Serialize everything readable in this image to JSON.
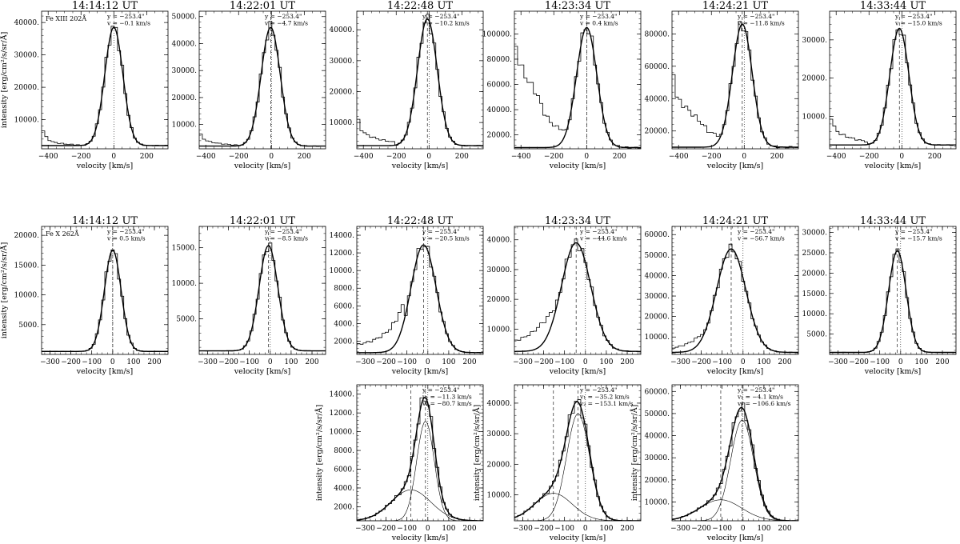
{
  "figure": {
    "xlabel": "velocity [km/s]",
    "ylabel_html": "intensity [erg/cm²/s/sr/Å]"
  },
  "chart_data": [
    {
      "row": 0,
      "col": 0,
      "type": "line",
      "title": "14:14:12 UT",
      "line_label": "Fe XIII 202Å",
      "ann": [
        "y = −253.4\"",
        "v = −0.1 km/s"
      ],
      "xlim": [
        -440,
        330
      ],
      "ylim": [
        1000,
        43500
      ],
      "xticks": [
        -400,
        -200,
        0,
        200
      ],
      "yticks": [
        10000,
        20000,
        30000,
        40000
      ],
      "ytick_labels": [
        "10000.",
        "20000.",
        "30000.",
        "40000."
      ],
      "vlines": [
        0
      ],
      "fit": {
        "bg": 2000,
        "components": [
          {
            "amp": 36500,
            "center": -0.1,
            "sigma": 55
          }
        ]
      },
      "left_excess": [
        {
          "x": -440,
          "y": 7500
        },
        {
          "x": -410,
          "y": 4500
        },
        {
          "x": -380,
          "y": 3200
        },
        {
          "x": -340,
          "y": 2800
        },
        {
          "x": -300,
          "y": 2500
        },
        {
          "x": -250,
          "y": 2300
        },
        {
          "x": -200,
          "y": 2200
        }
      ]
    },
    {
      "row": 0,
      "col": 1,
      "type": "line",
      "title": "14:22:01 UT",
      "ann": [
        "y = −253.4\"",
        "v = −4.7 km/s"
      ],
      "xlim": [
        -440,
        330
      ],
      "ylim": [
        1000,
        52000
      ],
      "xticks": [
        -400,
        -200,
        0,
        200
      ],
      "yticks": [
        10000,
        20000,
        30000,
        40000,
        50000
      ],
      "ytick_labels": [
        "10000.",
        "20000.",
        "30000.",
        "40000.",
        "50000."
      ],
      "vlines": [
        -4.7,
        0
      ],
      "fit": {
        "bg": 2000,
        "components": [
          {
            "amp": 44000,
            "center": -4.7,
            "sigma": 58
          }
        ]
      },
      "left_excess": [
        {
          "x": -440,
          "y": 7000
        },
        {
          "x": -410,
          "y": 4500
        },
        {
          "x": -370,
          "y": 3500
        },
        {
          "x": -320,
          "y": 3000
        },
        {
          "x": -260,
          "y": 2600
        },
        {
          "x": -200,
          "y": 2300
        }
      ]
    },
    {
      "row": 0,
      "col": 2,
      "type": "line",
      "title": "14:22:48 UT",
      "ann": [
        "y = −253.4\"",
        "v = −10.2 km/s"
      ],
      "xlim": [
        -440,
        330
      ],
      "ylim": [
        1500,
        46000
      ],
      "xticks": [
        -400,
        -200,
        0,
        200
      ],
      "yticks": [
        10000,
        20000,
        30000,
        40000
      ],
      "ytick_labels": [
        "10000.",
        "20000.",
        "30000.",
        "40000."
      ],
      "vlines": [
        -10.2,
        0
      ],
      "fit": {
        "bg": 2500,
        "components": [
          {
            "amp": 41000,
            "center": -10.2,
            "sigma": 60
          }
        ]
      },
      "left_excess": [
        {
          "x": -440,
          "y": 12000
        },
        {
          "x": -410,
          "y": 7500
        },
        {
          "x": -380,
          "y": 6000
        },
        {
          "x": -340,
          "y": 5200
        },
        {
          "x": -300,
          "y": 4500
        },
        {
          "x": -250,
          "y": 4000
        },
        {
          "x": -200,
          "y": 3500
        }
      ]
    },
    {
      "row": 0,
      "col": 3,
      "type": "line",
      "title": "14:23:34 UT",
      "ann": [
        "y = −253.4\"",
        "v = 0.4 km/s"
      ],
      "xlim": [
        -440,
        330
      ],
      "ylim": [
        9000,
        118000
      ],
      "xticks": [
        -400,
        -200,
        0,
        200
      ],
      "yticks": [
        20000,
        40000,
        60000,
        80000,
        100000
      ],
      "ytick_labels": [
        "20000.",
        "40000.",
        "60000.",
        "80000.",
        "100000."
      ],
      "vlines": [
        0.4,
        0
      ],
      "fit": {
        "bg": 10000,
        "components": [
          {
            "amp": 95000,
            "center": 0.4,
            "sigma": 62
          }
        ]
      },
      "left_excess": [
        {
          "x": -440,
          "y": 95000
        },
        {
          "x": -410,
          "y": 78000
        },
        {
          "x": -380,
          "y": 68000
        },
        {
          "x": -340,
          "y": 60000
        },
        {
          "x": -300,
          "y": 52000
        },
        {
          "x": -260,
          "y": 38000
        },
        {
          "x": -220,
          "y": 30000
        },
        {
          "x": -180,
          "y": 26000
        },
        {
          "x": -140,
          "y": 24000
        }
      ]
    },
    {
      "row": 0,
      "col": 4,
      "type": "line",
      "title": "14:24:21 UT",
      "ann": [
        "y = −253.4\"",
        "v = −11.8 km/s"
      ],
      "xlim": [
        -440,
        330
      ],
      "ylim": [
        9000,
        94000
      ],
      "xticks": [
        -400,
        -200,
        0,
        200
      ],
      "yticks": [
        20000,
        40000,
        60000,
        80000
      ],
      "ytick_labels": [
        "20000.",
        "40000.",
        "60000.",
        "80000."
      ],
      "vlines": [
        -11.8,
        0
      ],
      "fit": {
        "bg": 10000,
        "components": [
          {
            "amp": 76000,
            "center": -11.8,
            "sigma": 60
          }
        ]
      },
      "left_excess": [
        {
          "x": -440,
          "y": 65000
        },
        {
          "x": -410,
          "y": 40000
        },
        {
          "x": -380,
          "y": 37000
        },
        {
          "x": -340,
          "y": 33000
        },
        {
          "x": -300,
          "y": 29000
        },
        {
          "x": -260,
          "y": 25000
        },
        {
          "x": -220,
          "y": 20000
        },
        {
          "x": -180,
          "y": 18000
        },
        {
          "x": -140,
          "y": 17000
        }
      ]
    },
    {
      "row": 0,
      "col": 5,
      "type": "line",
      "title": "14:33:44 UT",
      "ann": [
        "y = −253.4\"",
        "v = −15.0 km/s"
      ],
      "xlim": [
        -440,
        330
      ],
      "ylim": [
        1500,
        37500
      ],
      "xticks": [
        -400,
        -200,
        0,
        200
      ],
      "yticks": [
        10000,
        20000,
        30000
      ],
      "ytick_labels": [
        "10000.",
        "20000.",
        "30000."
      ],
      "vlines": [
        -15.0,
        0
      ],
      "fit": {
        "bg": 2500,
        "components": [
          {
            "amp": 30500,
            "center": -15.0,
            "sigma": 58
          }
        ]
      },
      "left_excess": [
        {
          "x": -440,
          "y": 11000
        },
        {
          "x": -410,
          "y": 7000
        },
        {
          "x": -380,
          "y": 5500
        },
        {
          "x": -340,
          "y": 4800
        },
        {
          "x": -300,
          "y": 4200
        },
        {
          "x": -250,
          "y": 3700
        },
        {
          "x": -200,
          "y": 3300
        }
      ]
    },
    {
      "row": 1,
      "col": 0,
      "type": "line",
      "title": "14:14:12 UT",
      "line_label": "Fe X 262Å",
      "ann": [
        "y = −253.4\"",
        "v = 0.5 km/s"
      ],
      "xlim": [
        -340,
        265
      ],
      "ylim": [
        0,
        21500
      ],
      "xticks": [
        -300,
        -200,
        -100,
        0,
        100,
        200
      ],
      "yticks": [
        5000,
        10000,
        15000,
        20000
      ],
      "ytick_labels": [
        "5000.",
        "10000.",
        "15000.",
        "20000."
      ],
      "vlines": [
        0.5,
        0
      ],
      "fit": {
        "bg": 500,
        "components": [
          {
            "amp": 17000,
            "center": 0.5,
            "sigma": 40
          }
        ]
      },
      "left_excess": []
    },
    {
      "row": 1,
      "col": 1,
      "type": "line",
      "title": "14:22:01 UT",
      "ann": [
        "y = −253.4\"",
        "v = −8.5 km/s"
      ],
      "xlim": [
        -340,
        265
      ],
      "ylim": [
        0,
        18000
      ],
      "xticks": [
        -300,
        -200,
        -100,
        0,
        100,
        200
      ],
      "yticks": [
        5000,
        10000,
        15000
      ],
      "ytick_labels": [
        "5000.",
        "10000.",
        "15000."
      ],
      "vlines": [
        -8.5,
        0
      ],
      "fit": {
        "bg": 500,
        "components": [
          {
            "amp": 14800,
            "center": -8.5,
            "sigma": 45
          }
        ]
      },
      "left_excess": []
    },
    {
      "row": 1,
      "col": 2,
      "type": "line",
      "title": "14:22:48 UT",
      "ann": [
        "y = −253.4\"",
        "v = −20.5 km/s"
      ],
      "xlim": [
        -340,
        265
      ],
      "ylim": [
        500,
        15000
      ],
      "xticks": [
        -300,
        -200,
        -100,
        0,
        100,
        200
      ],
      "yticks": [
        2000,
        4000,
        6000,
        8000,
        10000,
        12000,
        14000
      ],
      "ytick_labels": [
        "2000.",
        "4000.",
        "6000.",
        "8000.",
        "10000.",
        "12000.",
        "14000."
      ],
      "vlines": [
        -20.5,
        0
      ],
      "fit": {
        "bg": 700,
        "components": [
          {
            "amp": 12200,
            "center": -20.5,
            "sigma": 60
          }
        ]
      },
      "left_excess": [
        {
          "x": -340,
          "y": 1600
        },
        {
          "x": -300,
          "y": 1800
        },
        {
          "x": -260,
          "y": 2100
        },
        {
          "x": -220,
          "y": 2600
        },
        {
          "x": -180,
          "y": 3400
        },
        {
          "x": -150,
          "y": 4500
        },
        {
          "x": -120,
          "y": 6000
        }
      ]
    },
    {
      "row": 1,
      "col": 3,
      "type": "line",
      "title": "14:23:34 UT",
      "ann": [
        "y = −253.4\"",
        "v = −44.6 km/s"
      ],
      "xlim": [
        -340,
        265
      ],
      "ylim": [
        1500,
        44500
      ],
      "xticks": [
        -300,
        -200,
        -100,
        0,
        100,
        200
      ],
      "yticks": [
        10000,
        20000,
        30000,
        40000
      ],
      "ytick_labels": [
        "10000.",
        "20000.",
        "30000.",
        "40000."
      ],
      "vlines": [
        -44.6,
        0
      ],
      "fit": {
        "bg": 2500,
        "components": [
          {
            "amp": 36500,
            "center": -44.6,
            "sigma": 70
          }
        ]
      },
      "left_excess": [
        {
          "x": -340,
          "y": 6000
        },
        {
          "x": -300,
          "y": 7000
        },
        {
          "x": -260,
          "y": 8500
        },
        {
          "x": -220,
          "y": 11000
        },
        {
          "x": -180,
          "y": 14000
        },
        {
          "x": -150,
          "y": 17000
        },
        {
          "x": -120,
          "y": 21000
        }
      ]
    },
    {
      "row": 1,
      "col": 4,
      "type": "line",
      "title": "14:24:21 UT",
      "ann": [
        "y = −253.4\"",
        "v = −56.7 km/s"
      ],
      "xlim": [
        -340,
        265
      ],
      "ylim": [
        1500,
        64000
      ],
      "xticks": [
        -300,
        -200,
        -100,
        0,
        100,
        200
      ],
      "yticks": [
        10000,
        20000,
        30000,
        40000,
        50000,
        60000
      ],
      "ytick_labels": [
        "10000.",
        "20000.",
        "30000.",
        "40000.",
        "50000.",
        "60000."
      ],
      "vlines": [
        -56.7,
        0
      ],
      "fit": {
        "bg": 2500,
        "components": [
          {
            "amp": 50500,
            "center": -56.7,
            "sigma": 70
          }
        ]
      },
      "left_excess": [
        {
          "x": -340,
          "y": 4500
        },
        {
          "x": -300,
          "y": 5500
        },
        {
          "x": -260,
          "y": 7000
        },
        {
          "x": -220,
          "y": 9500
        },
        {
          "x": -180,
          "y": 13000
        }
      ]
    },
    {
      "row": 1,
      "col": 5,
      "type": "line",
      "title": "14:33:44 UT",
      "ann": [
        "y = −253.4\"",
        "v = −15.7 km/s"
      ],
      "xlim": [
        -340,
        265
      ],
      "ylim": [
        0,
        31500
      ],
      "xticks": [
        -300,
        -200,
        -100,
        0,
        100,
        200
      ],
      "yticks": [
        5000,
        10000,
        15000,
        20000,
        25000,
        30000
      ],
      "ytick_labels": [
        "5000.",
        "10000.",
        "15000.",
        "20000.",
        "25000.",
        "30000."
      ],
      "vlines": [
        -15.7,
        0
      ],
      "fit": {
        "bg": 500,
        "components": [
          {
            "amp": 25000,
            "center": -15.7,
            "sigma": 42
          }
        ]
      },
      "left_excess": []
    },
    {
      "row": 2,
      "col": 2,
      "type": "line",
      "ann": [
        "y = −253.4\"",
        "v₁ = −11.3 km/s",
        "v₂ = −80.7 km/s"
      ],
      "xlim": [
        -340,
        265
      ],
      "ylim": [
        500,
        15000
      ],
      "xticks": [
        -300,
        -200,
        -100,
        0,
        100,
        200
      ],
      "yticks": [
        2000,
        4000,
        6000,
        8000,
        10000,
        12000,
        14000
      ],
      "ytick_labels": [
        "2000.",
        "4000.",
        "6000.",
        "8000.",
        "10000.",
        "12000.",
        "14000."
      ],
      "vlines": [
        -80.7,
        -11.3,
        0
      ],
      "fit": {
        "bg": 500,
        "components": [
          {
            "amp": 10600,
            "center": -11.3,
            "sigma": 42
          },
          {
            "amp": 3300,
            "center": -80.7,
            "sigma": 95
          }
        ]
      },
      "left_excess": []
    },
    {
      "row": 2,
      "col": 3,
      "type": "line",
      "ann": [
        "y = −253.4\"",
        "v₁ = −35.2 km/s",
        "v₂ = −153.1 km/s"
      ],
      "xlim": [
        -340,
        265
      ],
      "ylim": [
        1500,
        46000
      ],
      "xticks": [
        -300,
        -200,
        -100,
        0,
        100,
        200
      ],
      "yticks": [
        10000,
        20000,
        30000,
        40000
      ],
      "ytick_labels": [
        "10000.",
        "20000.",
        "30000.",
        "40000."
      ],
      "vlines": [
        -153.1,
        -35.2,
        0
      ],
      "fit": {
        "bg": 1500,
        "components": [
          {
            "amp": 35000,
            "center": -35.2,
            "sigma": 55
          },
          {
            "amp": 9000,
            "center": -153.1,
            "sigma": 90
          }
        ]
      },
      "left_excess": []
    },
    {
      "row": 2,
      "col": 4,
      "type": "line",
      "ann": [
        "y = −253.4\"",
        "v₁ = −4.1 km/s",
        "v₂ = −106.6 km/s"
      ],
      "xlim": [
        -340,
        265
      ],
      "ylim": [
        1500,
        63000
      ],
      "xticks": [
        -300,
        -200,
        -100,
        0,
        100,
        200
      ],
      "yticks": [
        10000,
        20000,
        30000,
        40000,
        50000,
        60000
      ],
      "ytick_labels": [
        "10000.",
        "20000.",
        "30000.",
        "40000.",
        "50000.",
        "60000."
      ],
      "vlines": [
        -106.6,
        -4.1,
        0
      ],
      "fit": {
        "bg": 1500,
        "components": [
          {
            "amp": 45500,
            "center": -4.1,
            "sigma": 55
          },
          {
            "amp": 9500,
            "center": -106.6,
            "sigma": 100
          }
        ]
      },
      "left_excess": []
    }
  ]
}
